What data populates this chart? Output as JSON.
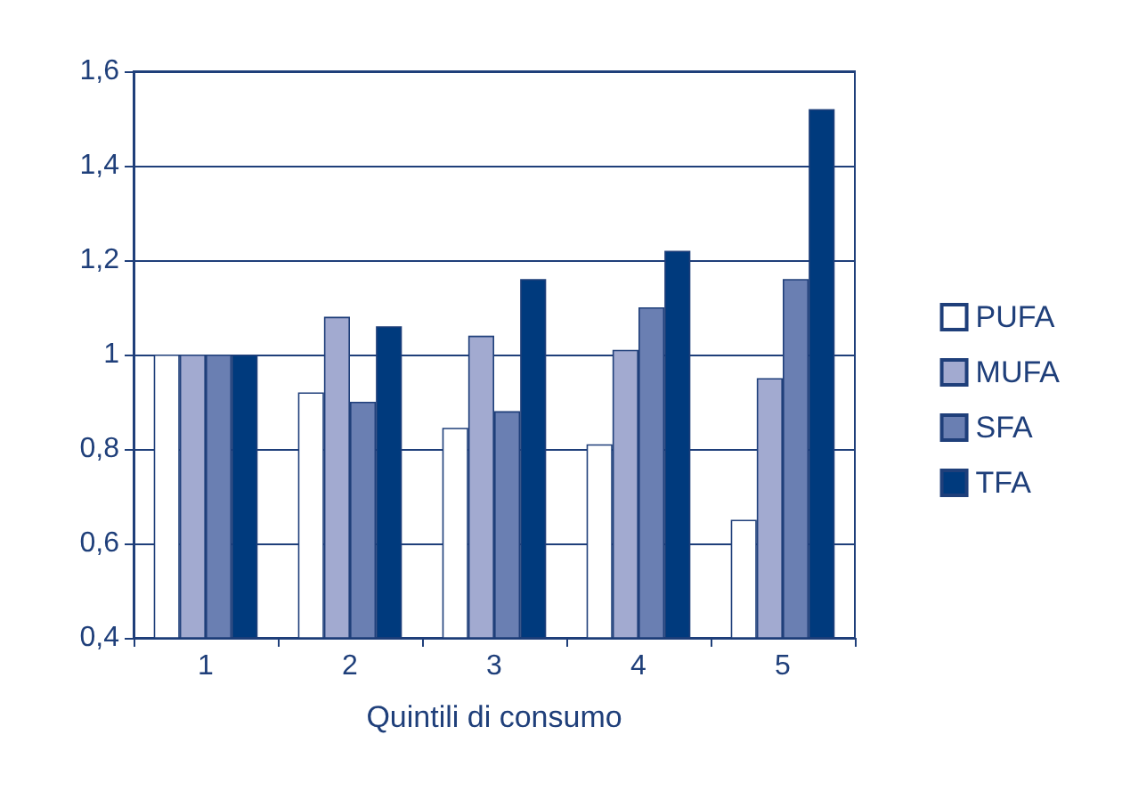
{
  "chart_data": {
    "type": "bar",
    "xlabel": "Quintili di consumo",
    "categories": [
      "1",
      "2",
      "3",
      "4",
      "5"
    ],
    "series": [
      {
        "name": "PUFA",
        "color": "#ffffff",
        "values": [
          1.0,
          0.92,
          0.845,
          0.81,
          0.65
        ]
      },
      {
        "name": "MUFA",
        "color": "#a2aad0",
        "values": [
          1.0,
          1.08,
          1.04,
          1.01,
          0.95
        ]
      },
      {
        "name": "SFA",
        "color": "#6a7fb2",
        "values": [
          1.0,
          0.9,
          0.88,
          1.1,
          1.16
        ]
      },
      {
        "name": "TFA",
        "color": "#003a7d",
        "values": [
          1.0,
          1.06,
          1.16,
          1.22,
          1.52
        ]
      }
    ],
    "ylim": [
      0.4,
      1.6
    ],
    "yticks": [
      {
        "value": 0.4,
        "label": "0,4"
      },
      {
        "value": 0.6,
        "label": "0,6"
      },
      {
        "value": 0.8,
        "label": "0,8"
      },
      1,
      {
        "value": 1.2,
        "label": "1,2"
      },
      {
        "value": 1.4,
        "label": "1,4"
      },
      {
        "value": 1.6,
        "label": "1,6"
      }
    ],
    "grid": "y",
    "legend": "right"
  }
}
